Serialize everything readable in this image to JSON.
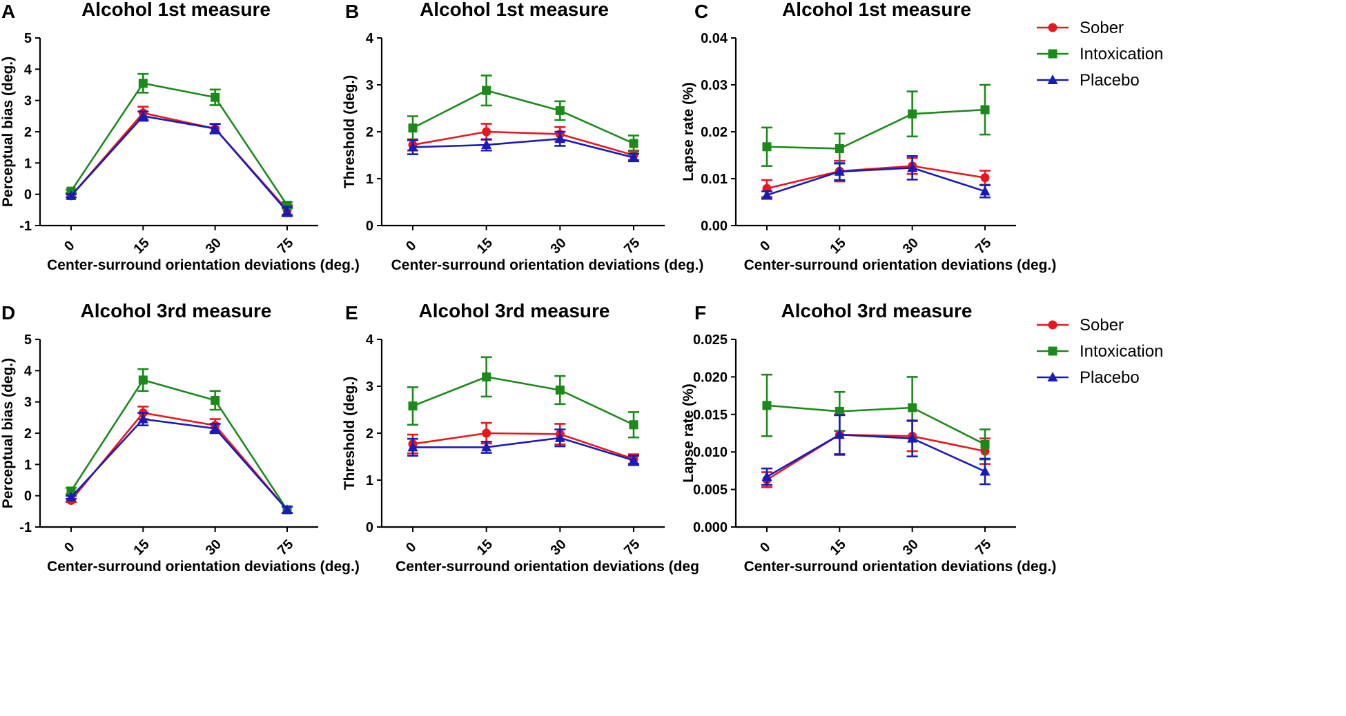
{
  "series_style": [
    {
      "name": "Sober",
      "color": "#e8161d",
      "marker": "circle"
    },
    {
      "name": "Intoxication",
      "color": "#1b8a1b",
      "marker": "square"
    },
    {
      "name": "Placebo",
      "color": "#1a1ab8",
      "marker": "triangle"
    }
  ],
  "chart_data": [
    {
      "type": "line",
      "label": "A",
      "title": "Alcohol 1st measure",
      "xlabel": "Center-surround orientation deviations (deg.)",
      "ylabel": "Perceptual bias (deg.)",
      "categories": [
        "0",
        "15",
        "30",
        "75"
      ],
      "ylim": [
        -1,
        5
      ],
      "yticks": [
        "-1",
        "0",
        "1",
        "2",
        "3",
        "4",
        "5"
      ],
      "show_legend": false,
      "series": [
        {
          "name": "Sober",
          "values": [
            -0.05,
            2.6,
            2.1,
            -0.5
          ],
          "errors": [
            0.05,
            0.2,
            0.15,
            0.15
          ]
        },
        {
          "name": "Intoxication",
          "values": [
            0.1,
            3.55,
            3.1,
            -0.35
          ],
          "errors": [
            0.05,
            0.3,
            0.25,
            0.1
          ]
        },
        {
          "name": "Placebo",
          "values": [
            -0.05,
            2.5,
            2.1,
            -0.55
          ],
          "errors": [
            0.05,
            0.15,
            0.15,
            0.15
          ]
        }
      ]
    },
    {
      "type": "line",
      "label": "B",
      "title": "Alcohol 1st measure",
      "xlabel": "Center-surround orientation deviations (deg.)",
      "ylabel": "Threshold (deg.)",
      "categories": [
        "0",
        "15",
        "30",
        "75"
      ],
      "ylim": [
        0,
        4
      ],
      "yticks": [
        "0",
        "1",
        "2",
        "3",
        "4"
      ],
      "show_legend": false,
      "series": [
        {
          "name": "Sober",
          "values": [
            1.72,
            2.0,
            1.95,
            1.5
          ],
          "errors": [
            0.12,
            0.17,
            0.15,
            0.1
          ]
        },
        {
          "name": "Intoxication",
          "values": [
            2.08,
            2.88,
            2.45,
            1.75
          ],
          "errors": [
            0.25,
            0.32,
            0.2,
            0.17
          ]
        },
        {
          "name": "Placebo",
          "values": [
            1.67,
            1.72,
            1.85,
            1.45
          ],
          "errors": [
            0.15,
            0.12,
            0.15,
            0.08
          ]
        }
      ]
    },
    {
      "type": "line",
      "label": "C",
      "title": "Alcohol 1st measure",
      "xlabel": "Center-surround orientation deviations (deg.)",
      "ylabel": "Lapse rate (%)",
      "categories": [
        "0",
        "15",
        "30",
        "75"
      ],
      "ylim": [
        0,
        0.04
      ],
      "yticks": [
        "0.00",
        "0.01",
        "0.02",
        "0.03",
        "0.04"
      ],
      "show_legend": true,
      "series": [
        {
          "name": "Sober",
          "values": [
            0.0079,
            0.0116,
            0.0127,
            0.0102
          ],
          "errors": [
            0.0018,
            0.0022,
            0.0017,
            0.0015
          ]
        },
        {
          "name": "Intoxication",
          "values": [
            0.0168,
            0.0164,
            0.0238,
            0.0247
          ],
          "errors": [
            0.0041,
            0.0032,
            0.0048,
            0.0053
          ]
        },
        {
          "name": "Placebo",
          "values": [
            0.0065,
            0.0115,
            0.0123,
            0.0073
          ],
          "errors": [
            0.0008,
            0.0018,
            0.0025,
            0.0013
          ]
        }
      ]
    },
    {
      "type": "line",
      "label": "D",
      "title": "Alcohol 3rd measure",
      "xlabel": "Center-surround orientation deviations (deg.)",
      "ylabel": "Perceptual bias (deg.)",
      "categories": [
        "0",
        "15",
        "30",
        "75"
      ],
      "ylim": [
        -1,
        5
      ],
      "yticks": [
        "-1",
        "0",
        "1",
        "2",
        "3",
        "4",
        "5"
      ],
      "show_legend": false,
      "series": [
        {
          "name": "Sober",
          "values": [
            -0.15,
            2.65,
            2.25,
            -0.45
          ],
          "errors": [
            0.05,
            0.2,
            0.2,
            0.1
          ]
        },
        {
          "name": "Intoxication",
          "values": [
            0.15,
            3.7,
            3.05,
            -0.45
          ],
          "errors": [
            0.1,
            0.35,
            0.3,
            0.1
          ]
        },
        {
          "name": "Placebo",
          "values": [
            -0.05,
            2.45,
            2.15,
            -0.45
          ],
          "errors": [
            0.05,
            0.2,
            0.15,
            0.1
          ]
        }
      ]
    },
    {
      "type": "line",
      "label": "E",
      "title": "Alcohol 3rd measure",
      "xlabel": "Center-surround orientation deviations (deg",
      "ylabel": "Threshold (deg.)",
      "categories": [
        "0",
        "15",
        "30",
        "75"
      ],
      "ylim": [
        0,
        4
      ],
      "yticks": [
        "0",
        "1",
        "2",
        "3",
        "4"
      ],
      "show_legend": false,
      "series": [
        {
          "name": "Sober",
          "values": [
            1.77,
            2.0,
            1.98,
            1.45
          ],
          "errors": [
            0.2,
            0.22,
            0.22,
            0.1
          ]
        },
        {
          "name": "Intoxication",
          "values": [
            2.58,
            3.2,
            2.92,
            2.18
          ],
          "errors": [
            0.4,
            0.42,
            0.3,
            0.27
          ]
        },
        {
          "name": "Placebo",
          "values": [
            1.7,
            1.7,
            1.9,
            1.42
          ],
          "errors": [
            0.18,
            0.12,
            0.18,
            0.1
          ]
        }
      ]
    },
    {
      "type": "line",
      "label": "F",
      "title": "Alcohol 3rd measure",
      "xlabel": "Center-surround orientation deviations (deg.)",
      "ylabel": "Lapse rate (%)",
      "categories": [
        "0",
        "15",
        "30",
        "75"
      ],
      "ylim": [
        0,
        0.025
      ],
      "yticks": [
        "0.000",
        "0.005",
        "0.010",
        "0.015",
        "0.020",
        "0.025"
      ],
      "show_legend": true,
      "series": [
        {
          "name": "Sober",
          "values": [
            0.0063,
            0.0123,
            0.0121,
            0.0101
          ],
          "errors": [
            0.001,
            0.0027,
            0.002,
            0.0017
          ]
        },
        {
          "name": "Intoxication",
          "values": [
            0.0162,
            0.0154,
            0.0159,
            0.011
          ],
          "errors": [
            0.0041,
            0.0026,
            0.0041,
            0.002
          ]
        },
        {
          "name": "Placebo",
          "values": [
            0.0067,
            0.0123,
            0.0118,
            0.0074
          ],
          "errors": [
            0.0011,
            0.0026,
            0.0024,
            0.0017
          ]
        }
      ]
    }
  ]
}
